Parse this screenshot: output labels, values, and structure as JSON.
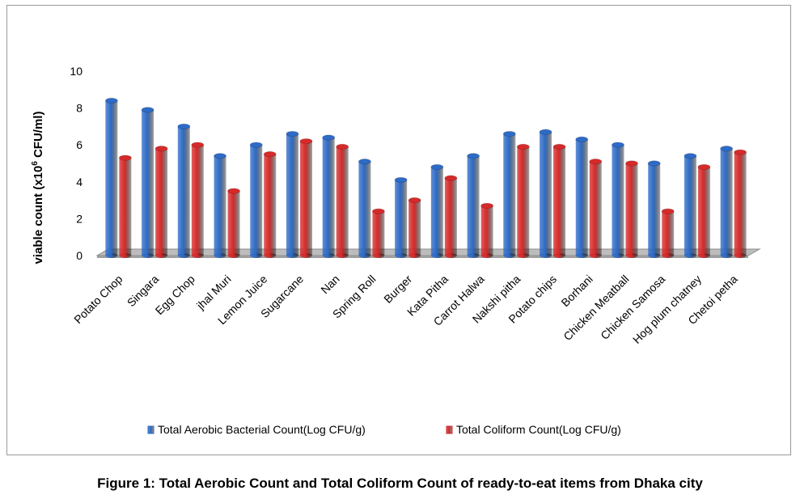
{
  "caption": "Figure 1: Total Aerobic Count and Total Coliform Count of ready-to-eat items from Dhaka city",
  "chart_data": {
    "type": "bar",
    "title": "",
    "xlabel": "",
    "ylabel_main": "viable count (x10",
    "ylabel_sup": "6",
    "ylabel_rest": "  CFU/ml)",
    "ylim": [
      0,
      10
    ],
    "yticks": [
      "0",
      "2",
      "4",
      "6",
      "8",
      "10"
    ],
    "grid": false,
    "legend_position": "bottom",
    "categories": [
      "Potato Chop",
      "Singara",
      "Egg Chop",
      "jhal Muri",
      "Lemon Juice",
      "Sugarcane",
      "Nan",
      "Spring Roll",
      "Burger",
      "Kata Pitha",
      "Carrot Halwa",
      "Nakshi pitha",
      "Potato chips",
      "Borhani",
      "Chicken Meatball",
      "Chicken Samosa",
      "Hog plum chatney",
      "Chetoi petha"
    ],
    "series": [
      {
        "name": "Total Aerobic Bacterial Count(Log CFU/g)",
        "color": "#2e6bc6",
        "values": [
          8.4,
          7.9,
          7.0,
          5.4,
          6.0,
          6.6,
          6.4,
          5.1,
          4.1,
          4.8,
          5.4,
          6.6,
          6.7,
          6.3,
          6.0,
          5.0,
          5.4,
          5.8
        ]
      },
      {
        "name": "Total Coliform Count(Log CFU/g)",
        "color": "#d62a2a",
        "values": [
          5.3,
          5.8,
          6.0,
          3.5,
          5.5,
          6.2,
          5.9,
          2.4,
          3.0,
          4.2,
          2.7,
          5.9,
          5.9,
          5.1,
          5.0,
          2.4,
          4.8,
          5.6
        ]
      }
    ]
  }
}
